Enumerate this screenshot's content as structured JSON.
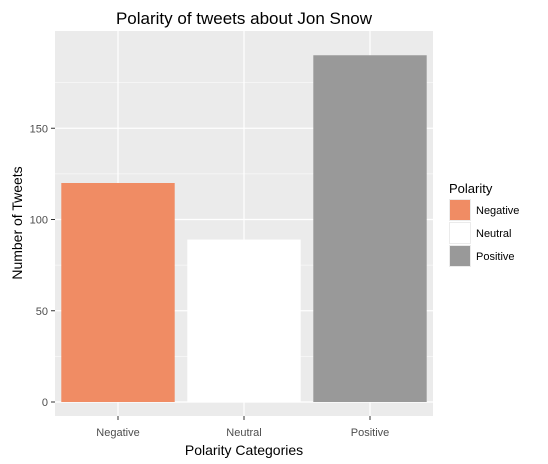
{
  "chart_data": {
    "type": "bar",
    "title": "Polarity of tweets about Jon Snow",
    "xlabel": "Polarity Categories",
    "ylabel": "Number of Tweets",
    "categories": [
      "Negative",
      "Neutral",
      "Positive"
    ],
    "values": [
      120,
      89,
      190
    ],
    "colors": [
      "#f08c64",
      "#ffffff",
      "#999999"
    ],
    "ylim": [
      0,
      200
    ],
    "yticks": [
      0,
      50,
      100,
      150
    ],
    "grid": true,
    "panel_background": "#ebebeb",
    "gridline_color": "#ffffff",
    "legend": {
      "title": "Polarity",
      "placement": "right",
      "entries": [
        "Negative",
        "Neutral",
        "Positive"
      ]
    }
  }
}
